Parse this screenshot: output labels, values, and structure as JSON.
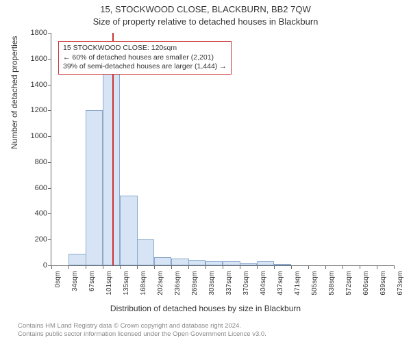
{
  "title_main": "15, STOCKWOOD CLOSE, BLACKBURN, BB2 7QW",
  "title_sub": "Size of property relative to detached houses in Blackburn",
  "y_label": "Number of detached properties",
  "x_label": "Distribution of detached houses by size in Blackburn",
  "legend": {
    "line1": "15 STOCKWOOD CLOSE: 120sqm",
    "line2": "← 60% of detached houses are smaller (2,201)",
    "line3": "39% of semi-detached houses are larger (1,444) →"
  },
  "attribution": {
    "line1": "Contains HM Land Registry data © Crown copyright and database right 2024.",
    "line2": "Contains public sector information licensed under the Open Government Licence v3.0."
  },
  "chart": {
    "type": "bar",
    "ylim": [
      0,
      1800
    ],
    "ytick_step": 200,
    "xtick_step": 1,
    "bar_color": "#d6e4f5",
    "bar_border_color": "#8aa8cc",
    "ref_line_color": "#cc3333",
    "ref_line_x": 120,
    "background_color": "#ffffff",
    "axis_color": "#666666",
    "title_fontsize": 13,
    "label_fontsize": 12,
    "tick_fontsize": 11,
    "x_categories": [
      "0sqm",
      "34sqm",
      "67sqm",
      "101sqm",
      "135sqm",
      "168sqm",
      "202sqm",
      "236sqm",
      "269sqm",
      "303sqm",
      "337sqm",
      "370sqm",
      "404sqm",
      "437sqm",
      "471sqm",
      "505sqm",
      "538sqm",
      "572sqm",
      "606sqm",
      "639sqm",
      "673sqm"
    ],
    "x_numeric": [
      0,
      34,
      67,
      101,
      135,
      168,
      202,
      236,
      269,
      303,
      337,
      370,
      404,
      437,
      471,
      505,
      538,
      572,
      606,
      639,
      673
    ],
    "values": [
      0,
      92,
      1200,
      1480,
      540,
      200,
      65,
      55,
      45,
      30,
      30,
      15,
      30,
      5,
      0,
      0,
      0,
      0,
      0,
      0
    ]
  }
}
